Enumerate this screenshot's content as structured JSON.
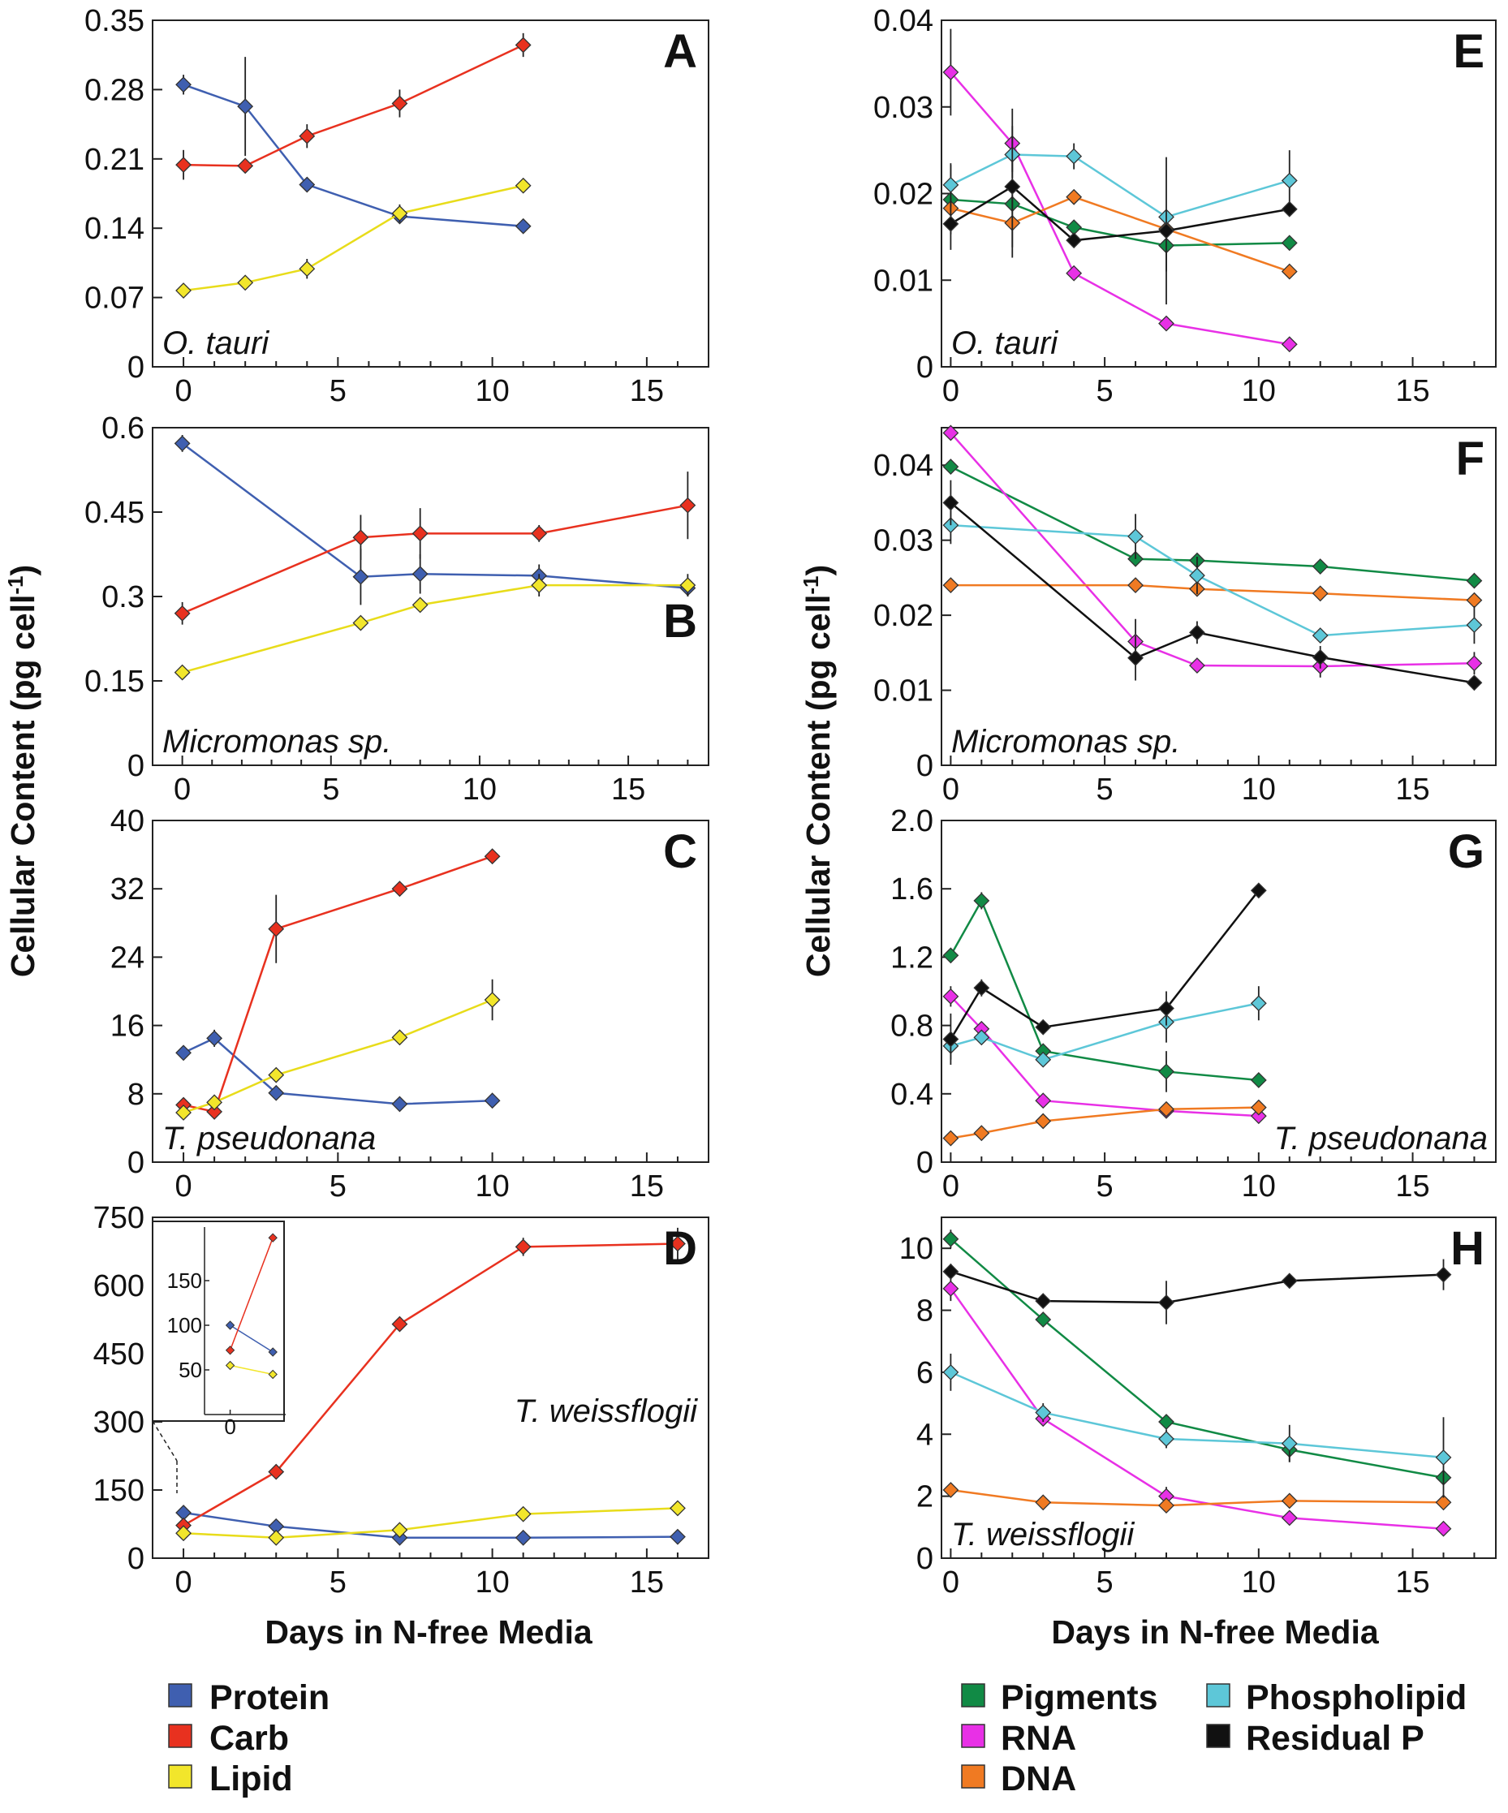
{
  "figure": {
    "ylabel_main": "Cellular Content (pg cell",
    "ylabel_sup": "-1",
    "ylabel_close": ")",
    "xlabel": "Days in N-free Media"
  },
  "legend": {
    "left": [
      {
        "name": "Protein",
        "color": "#3f5fb0"
      },
      {
        "name": "Carb",
        "color": "#e8311f"
      },
      {
        "name": "Lipid",
        "color": "#f2e62b"
      }
    ],
    "right": [
      {
        "name": "Pigments",
        "color": "#118a45"
      },
      {
        "name": "RNA",
        "color": "#e830e6"
      },
      {
        "name": "DNA",
        "color": "#f07a22"
      },
      {
        "name": "Phospholipid",
        "color": "#5dc7d8"
      },
      {
        "name": "Residual P",
        "color": "#111111"
      }
    ]
  },
  "chart_data": [
    {
      "id": "A",
      "type": "line",
      "letter": "A",
      "species": "O. tauri",
      "letter_pos": "top-right",
      "species_pos": "bottom-left",
      "xlim": [
        -1,
        17
      ],
      "ylim": [
        0,
        0.35
      ],
      "xticks": [
        "0",
        "5",
        "10",
        "15"
      ],
      "yticks": [
        "0",
        "0.07",
        "0.14",
        "0.21",
        "0.28",
        "0.35"
      ],
      "series": [
        {
          "name": "Protein",
          "color": "#3f5fb0",
          "x": [
            0,
            2,
            4,
            7,
            11
          ],
          "y": [
            0.285,
            0.263,
            0.184,
            0.152,
            0.142
          ],
          "err": [
            0.01,
            0.05,
            0.006,
            0.005,
            0.007
          ]
        },
        {
          "name": "Carb",
          "color": "#e8311f",
          "x": [
            0,
            2,
            4,
            7,
            11
          ],
          "y": [
            0.204,
            0.203,
            0.233,
            0.266,
            0.325
          ],
          "err": [
            0.015,
            0,
            0.012,
            0.014,
            0.012
          ]
        },
        {
          "name": "Lipid",
          "color": "#f2e62b",
          "x": [
            0,
            2,
            4,
            7,
            11
          ],
          "y": [
            0.077,
            0.085,
            0.099,
            0.155,
            0.183
          ],
          "err": [
            0,
            0,
            0.01,
            0.009,
            0
          ]
        }
      ]
    },
    {
      "id": "B",
      "type": "line",
      "letter": "B",
      "species": "Micromonas sp.",
      "letter_pos": "mid-right",
      "species_pos": "bottom-left",
      "xlim": [
        -1,
        17.7
      ],
      "ylim": [
        0,
        0.6
      ],
      "xticks": [
        "0",
        "5",
        "10",
        "15"
      ],
      "yticks": [
        "0",
        "0.15",
        "0.3",
        "0.45",
        "0.6"
      ],
      "series": [
        {
          "name": "Protein",
          "color": "#3f5fb0",
          "x": [
            0,
            6,
            8,
            12,
            17
          ],
          "y": [
            0.572,
            0.335,
            0.34,
            0.337,
            0.315
          ],
          "err": [
            0.015,
            0.05,
            0.035,
            0.02,
            0.015
          ]
        },
        {
          "name": "Carb",
          "color": "#e8311f",
          "x": [
            0,
            6,
            8,
            12,
            17
          ],
          "y": [
            0.27,
            0.405,
            0.412,
            0.412,
            0.462
          ],
          "err": [
            0.02,
            0.04,
            0.045,
            0.015,
            0.06
          ]
        },
        {
          "name": "Lipid",
          "color": "#f2e62b",
          "x": [
            0,
            6,
            8,
            12,
            17
          ],
          "y": [
            0.165,
            0.253,
            0.285,
            0.32,
            0.32
          ],
          "err": [
            0,
            0,
            0,
            0.02,
            0.02
          ]
        }
      ]
    },
    {
      "id": "C",
      "type": "line",
      "letter": "C",
      "species": "T. pseudonana",
      "letter_pos": "top-right",
      "species_pos": "bottom-left",
      "xlim": [
        -1,
        17
      ],
      "ylim": [
        0,
        40
      ],
      "xticks": [
        "0",
        "5",
        "10",
        "15"
      ],
      "yticks": [
        "0",
        "8",
        "16",
        "24",
        "32",
        "40"
      ],
      "series": [
        {
          "name": "Protein",
          "color": "#3f5fb0",
          "x": [
            0,
            1,
            3,
            7,
            10
          ],
          "y": [
            12.8,
            14.5,
            8.1,
            6.8,
            7.2
          ],
          "err": [
            0,
            1,
            0,
            0,
            0.6
          ]
        },
        {
          "name": "Carb",
          "color": "#e8311f",
          "x": [
            0,
            1,
            3,
            7,
            10
          ],
          "y": [
            6.7,
            5.9,
            27.3,
            32.0,
            35.8
          ],
          "err": [
            0.8,
            0.5,
            4,
            0,
            0
          ]
        },
        {
          "name": "Lipid",
          "color": "#f2e62b",
          "x": [
            0,
            1,
            3,
            7,
            10
          ],
          "y": [
            5.8,
            7.0,
            10.2,
            14.6,
            19.0
          ],
          "err": [
            0,
            0,
            0,
            0,
            2.4
          ]
        }
      ]
    },
    {
      "id": "D",
      "type": "line",
      "letter": "D",
      "species": "T. weissflogii",
      "letter_pos": "top-right",
      "species_pos": "mid-right",
      "xlim": [
        -1,
        17
      ],
      "ylim": [
        0,
        750
      ],
      "xticks": [
        "0",
        "5",
        "10",
        "15"
      ],
      "yticks": [
        "0",
        "150",
        "300",
        "450",
        "600",
        "750"
      ],
      "series": [
        {
          "name": "Protein",
          "color": "#3f5fb0",
          "x": [
            0,
            3,
            7,
            11,
            16
          ],
          "y": [
            100,
            70,
            45,
            45,
            47
          ],
          "err": [
            0,
            0,
            0,
            0,
            0
          ]
        },
        {
          "name": "Carb",
          "color": "#e8311f",
          "x": [
            0,
            3,
            7,
            11,
            16
          ],
          "y": [
            72,
            190,
            515,
            685,
            692
          ],
          "err": [
            0,
            0,
            0,
            20,
            35
          ]
        },
        {
          "name": "Lipid",
          "color": "#f2e62b",
          "x": [
            0,
            3,
            7,
            11,
            16
          ],
          "y": [
            55,
            45,
            62,
            97,
            110
          ],
          "err": [
            0,
            0,
            0,
            0,
            0
          ]
        }
      ],
      "inset": {
        "xlim": [
          -0.6,
          1.3
        ],
        "ylim": [
          0,
          210
        ],
        "yticks": [
          "50",
          "100",
          "150"
        ],
        "xtick": "0",
        "series": [
          {
            "name": "Protein",
            "color": "#3f5fb0",
            "x": [
              0,
              1
            ],
            "y": [
              100,
              70
            ]
          },
          {
            "name": "Carb",
            "color": "#e8311f",
            "x": [
              0,
              1
            ],
            "y": [
              72,
              198
            ]
          },
          {
            "name": "Lipid",
            "color": "#f2e62b",
            "x": [
              0,
              1
            ],
            "y": [
              55,
              45
            ]
          }
        ]
      }
    },
    {
      "id": "E",
      "type": "line",
      "letter": "E",
      "species": "O. tauri",
      "letter_pos": "top-right",
      "species_pos": "bottom-left",
      "xlim": [
        -0.3,
        17.7
      ],
      "ylim": [
        0,
        0.04
      ],
      "xticks": [
        "0",
        "5",
        "10",
        "15"
      ],
      "yticks": [
        "0",
        "0.01",
        "0.02",
        "0.03",
        "0.04"
      ],
      "series": [
        {
          "name": "Pigments",
          "color": "#118a45",
          "x": [
            0,
            2,
            4,
            7,
            11
          ],
          "y": [
            0.0193,
            0.0188,
            0.0161,
            0.014,
            0.0143
          ],
          "err": [
            0.004,
            0,
            0,
            0.003,
            0
          ]
        },
        {
          "name": "RNA",
          "color": "#e830e6",
          "x": [
            0,
            2,
            4,
            7,
            11
          ],
          "y": [
            0.034,
            0.0258,
            0.0108,
            0.005,
            0.0026
          ],
          "err": [
            0.005,
            0.004,
            0,
            0,
            0
          ]
        },
        {
          "name": "DNA",
          "color": "#f07a22",
          "x": [
            0,
            2,
            4,
            7,
            11
          ],
          "y": [
            0.0183,
            0.0166,
            0.0196,
            0.0159,
            0.011
          ],
          "err": [
            0,
            0.004,
            0,
            0,
            0
          ]
        },
        {
          "name": "Phospholipid",
          "color": "#5dc7d8",
          "x": [
            0,
            2,
            4,
            7,
            11
          ],
          "y": [
            0.021,
            0.0245,
            0.0243,
            0.0173,
            0.0215
          ],
          "err": [
            0.0025,
            0.002,
            0.0015,
            0,
            0.0035
          ]
        },
        {
          "name": "Residual P",
          "color": "#111111",
          "x": [
            0,
            2,
            4,
            7,
            11
          ],
          "y": [
            0.0165,
            0.0208,
            0.0146,
            0.0157,
            0.0182
          ],
          "err": [
            0.003,
            0.007,
            0,
            0.0085,
            0
          ]
        }
      ]
    },
    {
      "id": "F",
      "type": "line",
      "letter": "F",
      "species": "Micromonas sp.",
      "letter_pos": "top-right",
      "species_pos": "bottom-left",
      "xlim": [
        -0.3,
        17.7
      ],
      "ylim": [
        0,
        0.045
      ],
      "xticks": [
        "0",
        "5",
        "10",
        "15"
      ],
      "yticks": [
        "0",
        "0.01",
        "0.02",
        "0.03",
        "0.04"
      ],
      "series": [
        {
          "name": "Pigments",
          "color": "#118a45",
          "x": [
            0,
            6,
            8,
            12,
            17
          ],
          "y": [
            0.0398,
            0.0275,
            0.0273,
            0.0265,
            0.0246
          ],
          "err": [
            0,
            0,
            0,
            0,
            0
          ]
        },
        {
          "name": "RNA",
          "color": "#e830e6",
          "x": [
            0,
            6,
            8,
            12,
            17
          ],
          "y": [
            0.0443,
            0.0165,
            0.0133,
            0.0132,
            0.0136
          ],
          "err": [
            0,
            0.003,
            0,
            0.0015,
            0.0015
          ]
        },
        {
          "name": "DNA",
          "color": "#f07a22",
          "x": [
            0,
            6,
            8,
            12,
            17
          ],
          "y": [
            0.024,
            0.024,
            0.0235,
            0.0229,
            0.022
          ],
          "err": [
            0,
            0,
            0,
            0,
            0
          ]
        },
        {
          "name": "Phospholipid",
          "color": "#5dc7d8",
          "x": [
            0,
            6,
            8,
            12,
            17
          ],
          "y": [
            0.032,
            0.0305,
            0.0253,
            0.0173,
            0.0187
          ],
          "err": [
            0.0025,
            0.003,
            0.0025,
            0,
            0.0025
          ]
        },
        {
          "name": "Residual P",
          "color": "#111111",
          "x": [
            0,
            6,
            8,
            12,
            17
          ],
          "y": [
            0.035,
            0.0143,
            0.0177,
            0.0144,
            0.011
          ],
          "err": [
            0.003,
            0.003,
            0.0015,
            0.0015,
            0
          ]
        }
      ]
    },
    {
      "id": "G",
      "type": "line",
      "letter": "G",
      "species": "T. pseudonana",
      "letter_pos": "top-right",
      "species_pos": "bottom-right",
      "xlim": [
        -0.3,
        17.7
      ],
      "ylim": [
        0,
        2.0
      ],
      "xticks": [
        "0",
        "5",
        "10",
        "15"
      ],
      "yticks": [
        "0",
        "0.4",
        "0.8",
        "1.2",
        "1.6",
        "2.0"
      ],
      "series": [
        {
          "name": "Pigments",
          "color": "#118a45",
          "x": [
            0,
            1,
            3,
            7,
            10
          ],
          "y": [
            1.21,
            1.53,
            0.65,
            0.53,
            0.48
          ],
          "err": [
            0,
            0.05,
            0,
            0.12,
            0
          ]
        },
        {
          "name": "RNA",
          "color": "#e830e6",
          "x": [
            0,
            1,
            3,
            7,
            10
          ],
          "y": [
            0.97,
            0.78,
            0.36,
            0.3,
            0.27
          ],
          "err": [
            0.06,
            0,
            0,
            0,
            0
          ]
        },
        {
          "name": "DNA",
          "color": "#f07a22",
          "x": [
            0,
            1,
            3,
            7,
            10
          ],
          "y": [
            0.14,
            0.17,
            0.24,
            0.31,
            0.32
          ],
          "err": [
            0,
            0,
            0,
            0,
            0
          ]
        },
        {
          "name": "Phospholipid",
          "color": "#5dc7d8",
          "x": [
            0,
            1,
            3,
            7,
            10
          ],
          "y": [
            0.68,
            0.73,
            0.6,
            0.82,
            0.93
          ],
          "err": [
            0.08,
            0,
            0,
            0.12,
            0.1
          ]
        },
        {
          "name": "Residual P",
          "color": "#111111",
          "x": [
            0,
            1,
            3,
            7,
            10
          ],
          "y": [
            0.72,
            1.02,
            0.79,
            0.9,
            1.59
          ],
          "err": [
            0.15,
            0.05,
            0,
            0.1,
            0
          ]
        }
      ]
    },
    {
      "id": "H",
      "type": "line",
      "letter": "H",
      "species": "T. weissflogii",
      "letter_pos": "top-right",
      "species_pos": "bottom-left",
      "xlim": [
        -0.3,
        17.7
      ],
      "ylim": [
        0,
        11
      ],
      "xticks": [
        "0",
        "5",
        "10",
        "15"
      ],
      "yticks": [
        "0",
        "2",
        "4",
        "6",
        "8",
        "10"
      ],
      "series": [
        {
          "name": "Pigments",
          "color": "#118a45",
          "x": [
            0,
            3,
            7,
            11,
            16
          ],
          "y": [
            10.3,
            7.7,
            4.4,
            3.5,
            2.6
          ],
          "err": [
            0.3,
            0,
            0,
            0.4,
            0
          ]
        },
        {
          "name": "RNA",
          "color": "#e830e6",
          "x": [
            0,
            3,
            7,
            11,
            16
          ],
          "y": [
            8.7,
            4.5,
            2.0,
            1.3,
            0.95
          ],
          "err": [
            0.4,
            0,
            0.3,
            0,
            0
          ]
        },
        {
          "name": "DNA",
          "color": "#f07a22",
          "x": [
            0,
            3,
            7,
            11,
            16
          ],
          "y": [
            2.2,
            1.8,
            1.7,
            1.85,
            1.8
          ],
          "err": [
            0,
            0,
            0,
            0,
            0
          ]
        },
        {
          "name": "Phospholipid",
          "color": "#5dc7d8",
          "x": [
            0,
            3,
            7,
            11,
            16
          ],
          "y": [
            6.0,
            4.7,
            3.85,
            3.7,
            3.25
          ],
          "err": [
            0.6,
            0.3,
            0.3,
            0.6,
            1.3
          ]
        },
        {
          "name": "Residual P",
          "color": "#111111",
          "x": [
            0,
            3,
            7,
            11,
            16
          ],
          "y": [
            9.25,
            8.3,
            8.25,
            8.95,
            9.15
          ],
          "err": [
            0.25,
            0,
            0.7,
            0,
            0.5
          ]
        }
      ]
    }
  ]
}
